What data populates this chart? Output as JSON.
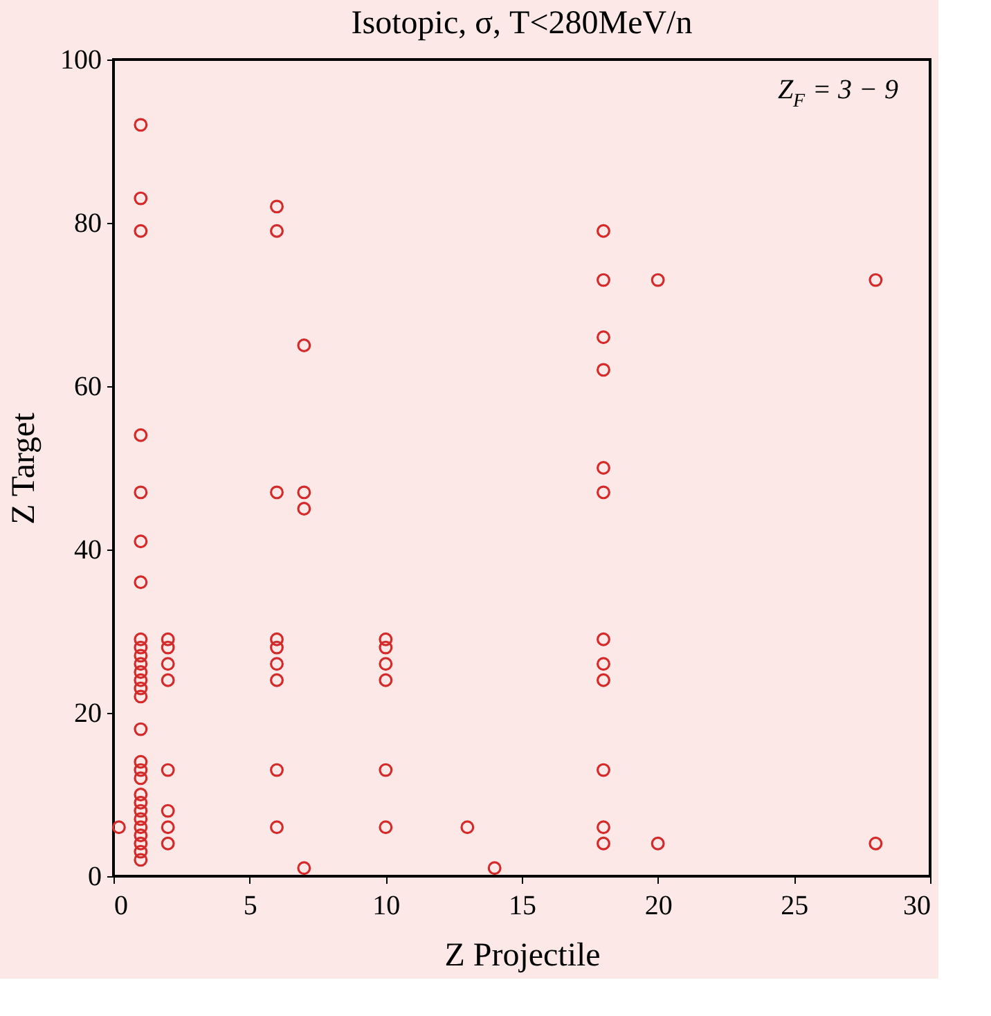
{
  "chart_data": {
    "type": "scatter",
    "title": "Isotopic, σ, T<280MeV/n",
    "xlabel": "Z  Projectile",
    "ylabel": "Z  Target",
    "annotations": [
      "Z$_{F}$ = 3 − 9"
    ],
    "marker": "circle",
    "grid": false,
    "xlim": [
      0,
      30
    ],
    "xticks": [
      0,
      5,
      10,
      15,
      20,
      25,
      30
    ],
    "ylim": [
      0,
      100
    ],
    "yticks": [
      0,
      20,
      40,
      60,
      80,
      100
    ],
    "series": [
      {
        "color": "#d42a2a",
        "x": [
          1,
          1,
          1,
          1,
          1,
          1,
          1,
          1,
          1,
          1,
          1,
          1,
          1,
          1,
          1,
          1,
          1,
          1,
          1,
          1,
          1,
          1,
          1,
          1,
          1,
          1,
          1,
          1,
          0.2,
          2,
          2,
          2,
          2,
          2,
          2,
          2,
          2,
          6,
          6,
          6,
          6,
          6,
          6,
          6,
          6,
          6,
          7,
          7,
          7,
          7,
          10,
          10,
          10,
          10,
          10,
          10,
          13,
          14,
          18,
          18,
          18,
          18,
          18,
          18,
          18,
          18,
          18,
          18,
          18,
          18,
          20,
          20,
          28,
          28
        ],
        "values": [
          92,
          83,
          79,
          54,
          47,
          41,
          36,
          29,
          28,
          27,
          26,
          25,
          24,
          23,
          22,
          18,
          14,
          13,
          12,
          10,
          9,
          8,
          7,
          6,
          5,
          4,
          3,
          2,
          6,
          29,
          28,
          26,
          24,
          13,
          8,
          6,
          4,
          82,
          79,
          47,
          29,
          28,
          26,
          24,
          13,
          6,
          65,
          47,
          45,
          1,
          29,
          28,
          26,
          24,
          13,
          6,
          6,
          1,
          79,
          73,
          66,
          62,
          50,
          47,
          29,
          26,
          24,
          13,
          6,
          4,
          73,
          4,
          73,
          4
        ]
      }
    ]
  }
}
